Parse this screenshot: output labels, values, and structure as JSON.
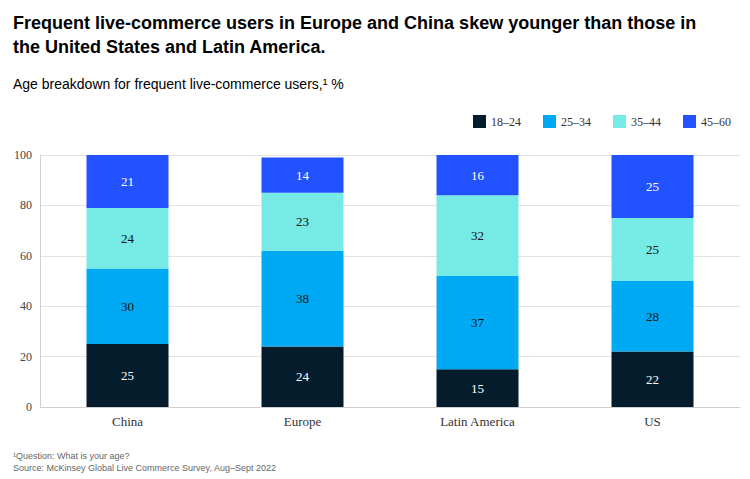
{
  "chart_data": {
    "type": "bar",
    "title": "Frequent live-commerce users in Europe and China skew younger than those in the United States and Latin America.",
    "subtitle": "Age breakdown for frequent live-commerce users,¹ %",
    "footnote": "¹Question: What is your age?",
    "source": "Source: McKinsey Global Live Commerce Survey, Aug–Sept 2022",
    "categories": [
      "China",
      "Europe",
      "Latin America",
      "US"
    ],
    "series": [
      {
        "name": "18–24",
        "color": "#051c2c",
        "values": [
          25,
          24,
          15,
          22
        ]
      },
      {
        "name": "25–34",
        "color": "#00a9f4",
        "values": [
          30,
          38,
          37,
          28
        ]
      },
      {
        "name": "35–44",
        "color": "#76eae4",
        "values": [
          24,
          23,
          32,
          25
        ]
      },
      {
        "name": "45–60",
        "color": "#2251ff",
        "values": [
          21,
          14,
          16,
          25
        ]
      }
    ],
    "ylim": [
      0,
      100
    ],
    "yticks": [
      0,
      20,
      40,
      60,
      80,
      100
    ],
    "stacked": true,
    "data_labels": true,
    "grid": true,
    "legend": "top-right"
  }
}
